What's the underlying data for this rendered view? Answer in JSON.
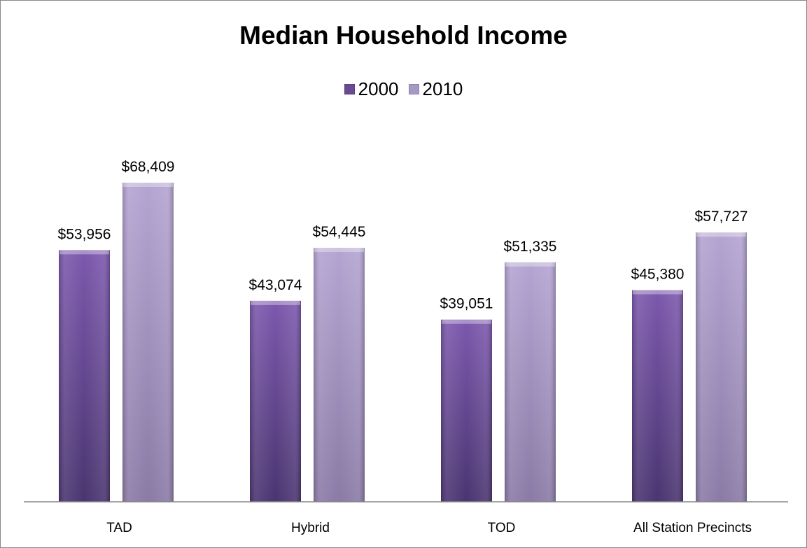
{
  "chart_data": {
    "type": "bar",
    "title": "Median Household Income",
    "categories": [
      "TAD",
      "Hybrid",
      "TOD",
      "All Station Precincts"
    ],
    "series": [
      {
        "name": "2000",
        "color": "#6a4a93",
        "values": [
          53956,
          43074,
          39051,
          45380
        ],
        "labels": [
          "$53,956",
          "$43,074",
          "$39,051",
          "$45,380"
        ]
      },
      {
        "name": "2010",
        "color": "#a898c4",
        "values": [
          68409,
          54445,
          51335,
          57727
        ],
        "labels": [
          "$68,409",
          "$54,445",
          "$51,335",
          "$57,727"
        ]
      }
    ],
    "ylim": [
      0,
      80000
    ],
    "grid": false,
    "legend_position": "top"
  }
}
